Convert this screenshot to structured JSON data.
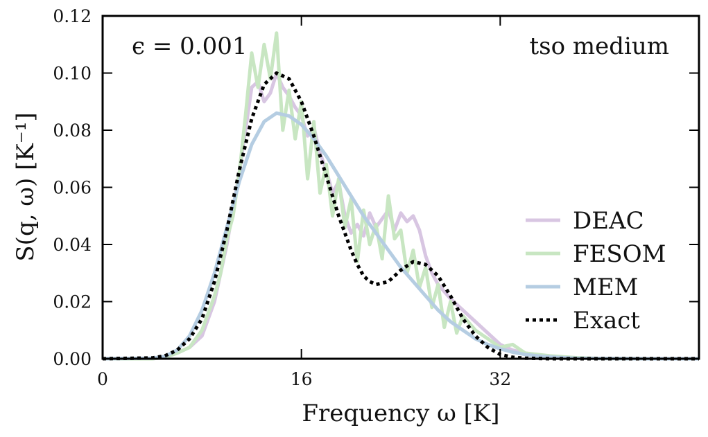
{
  "chart_data": {
    "type": "line",
    "xlabel": "Frequency ω [K]",
    "ylabel": "S(q, ω) [K⁻¹]",
    "xlim": [
      0,
      48
    ],
    "ylim": [
      0,
      0.12
    ],
    "x_ticks": [
      0,
      16,
      32
    ],
    "x_tick_labels": [
      "0",
      "16",
      "32"
    ],
    "y_ticks": [
      0,
      0.02,
      0.04,
      0.06,
      0.08,
      0.1,
      0.12
    ],
    "y_tick_labels": [
      "0.00",
      "0.02",
      "0.04",
      "0.06",
      "0.08",
      "0.10",
      "0.12"
    ],
    "annotations": {
      "left": "ϵ = 0.001",
      "right": "tso medium"
    },
    "legend_position": "lower-right",
    "grid": false,
    "series": [
      {
        "name": "DEAC",
        "color": "#d8c6e2",
        "style": "solid",
        "x": [
          0,
          4,
          5,
          6,
          7,
          8,
          9,
          10,
          11,
          11.5,
          12,
          12.5,
          13,
          13.5,
          14,
          14.5,
          15,
          15.5,
          16,
          16.5,
          17,
          17.5,
          18,
          18.5,
          19,
          19.5,
          20,
          20.5,
          21,
          21.5,
          22,
          22.5,
          23,
          23.5,
          24,
          24.5,
          25,
          25.5,
          26,
          26.5,
          27,
          28,
          29,
          30,
          31,
          32,
          33,
          34,
          36,
          38,
          40,
          44,
          48
        ],
        "y": [
          0,
          0,
          0.0005,
          0.002,
          0.004,
          0.008,
          0.02,
          0.04,
          0.065,
          0.08,
          0.095,
          0.097,
          0.09,
          0.093,
          0.1,
          0.095,
          0.092,
          0.088,
          0.085,
          0.078,
          0.081,
          0.072,
          0.066,
          0.058,
          0.062,
          0.05,
          0.044,
          0.047,
          0.043,
          0.051,
          0.046,
          0.049,
          0.052,
          0.045,
          0.051,
          0.048,
          0.05,
          0.045,
          0.036,
          0.03,
          0.026,
          0.021,
          0.017,
          0.013,
          0.009,
          0.005,
          0.003,
          0.002,
          0.0008,
          0.0003,
          0.0001,
          0,
          0
        ]
      },
      {
        "name": "FESOM",
        "color": "#c8e6c2",
        "style": "solid",
        "x": [
          0,
          4,
          5,
          6,
          7,
          8,
          9,
          9.5,
          10,
          10.5,
          11,
          11.5,
          12,
          12.5,
          13,
          13.5,
          14,
          14.5,
          15,
          15.5,
          16,
          16.5,
          17,
          17.5,
          18,
          18.5,
          19,
          19.5,
          20,
          20.5,
          21,
          21.5,
          22,
          22.5,
          23,
          23.5,
          24,
          24.5,
          25,
          25.5,
          26,
          26.5,
          27,
          27.5,
          28,
          28.5,
          29,
          30,
          31,
          32,
          33,
          34,
          36,
          38,
          40,
          44,
          48
        ],
        "y": [
          0,
          0,
          0.0005,
          0.002,
          0.004,
          0.01,
          0.022,
          0.03,
          0.042,
          0.05,
          0.065,
          0.085,
          0.107,
          0.095,
          0.11,
          0.098,
          0.114,
          0.08,
          0.094,
          0.077,
          0.09,
          0.063,
          0.083,
          0.058,
          0.068,
          0.05,
          0.063,
          0.046,
          0.056,
          0.034,
          0.052,
          0.04,
          0.047,
          0.035,
          0.057,
          0.042,
          0.045,
          0.03,
          0.038,
          0.025,
          0.032,
          0.018,
          0.026,
          0.011,
          0.02,
          0.009,
          0.015,
          0.01,
          0.007,
          0.004,
          0.005,
          0.002,
          0.001,
          0.0004,
          0.0001,
          0,
          0
        ]
      },
      {
        "name": "MEM",
        "color": "#b5cde2",
        "style": "solid",
        "x": [
          0,
          4,
          5,
          6,
          7,
          8,
          9,
          10,
          11,
          12,
          13,
          14,
          15,
          16,
          17,
          18,
          19,
          20,
          21,
          22,
          23,
          24,
          25,
          26,
          27,
          28,
          29,
          30,
          31,
          32,
          33,
          34,
          35,
          36,
          38,
          40,
          44,
          48
        ],
        "y": [
          0,
          0.0002,
          0.0008,
          0.003,
          0.008,
          0.017,
          0.03,
          0.046,
          0.062,
          0.075,
          0.083,
          0.086,
          0.085,
          0.082,
          0.077,
          0.071,
          0.064,
          0.057,
          0.05,
          0.044,
          0.038,
          0.032,
          0.027,
          0.022,
          0.017,
          0.013,
          0.01,
          0.007,
          0.005,
          0.0035,
          0.0023,
          0.0015,
          0.001,
          0.0006,
          0.0002,
          0.0001,
          0,
          0
        ]
      },
      {
        "name": "Exact",
        "color": "#000000",
        "style": "dotted",
        "x": [
          0,
          4,
          5,
          6,
          7,
          8,
          9,
          10,
          11,
          12,
          13,
          14,
          15,
          16,
          17,
          18,
          19,
          19.5,
          20,
          20.5,
          21,
          21.5,
          22,
          23,
          24,
          25,
          26,
          26.5,
          27,
          28,
          29,
          30,
          31,
          32,
          33,
          34,
          36,
          40,
          44,
          48
        ],
        "y": [
          0,
          0.0003,
          0.001,
          0.003,
          0.007,
          0.014,
          0.027,
          0.045,
          0.066,
          0.084,
          0.096,
          0.1,
          0.098,
          0.09,
          0.078,
          0.064,
          0.05,
          0.044,
          0.038,
          0.033,
          0.029,
          0.027,
          0.026,
          0.027,
          0.031,
          0.034,
          0.033,
          0.031,
          0.029,
          0.022,
          0.014,
          0.008,
          0.004,
          0.0015,
          0.0005,
          0.0002,
          0,
          0,
          0,
          0
        ]
      }
    ]
  }
}
